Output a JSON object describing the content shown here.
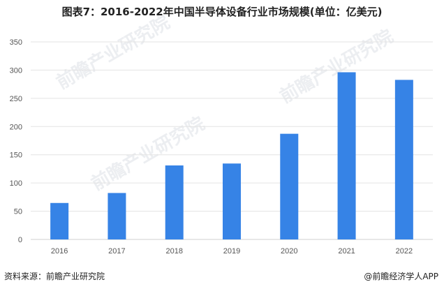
{
  "title": "图表7：2016-2022年中国半导体设备行业市场规模(单位：亿美元)",
  "source": "资料来源：前瞻产业研究院",
  "credit": "@前瞻经济学人APP",
  "watermark": "前瞻产业研究院",
  "chart_data": {
    "type": "bar",
    "title": "图表7：2016-2022年中国半导体设备行业市场规模(单位：亿美元)",
    "categories": [
      "2016",
      "2017",
      "2018",
      "2019",
      "2020",
      "2021",
      "2022"
    ],
    "values": [
      64.6,
      82.3,
      131.1,
      134.5,
      187.2,
      296.2,
      282.7
    ],
    "ylim": [
      0,
      350
    ],
    "yticks": [
      0,
      50,
      100,
      150,
      200,
      250,
      300,
      350
    ],
    "grid": true,
    "bar_color": "#3683e6",
    "xlabel": "",
    "ylabel": ""
  }
}
